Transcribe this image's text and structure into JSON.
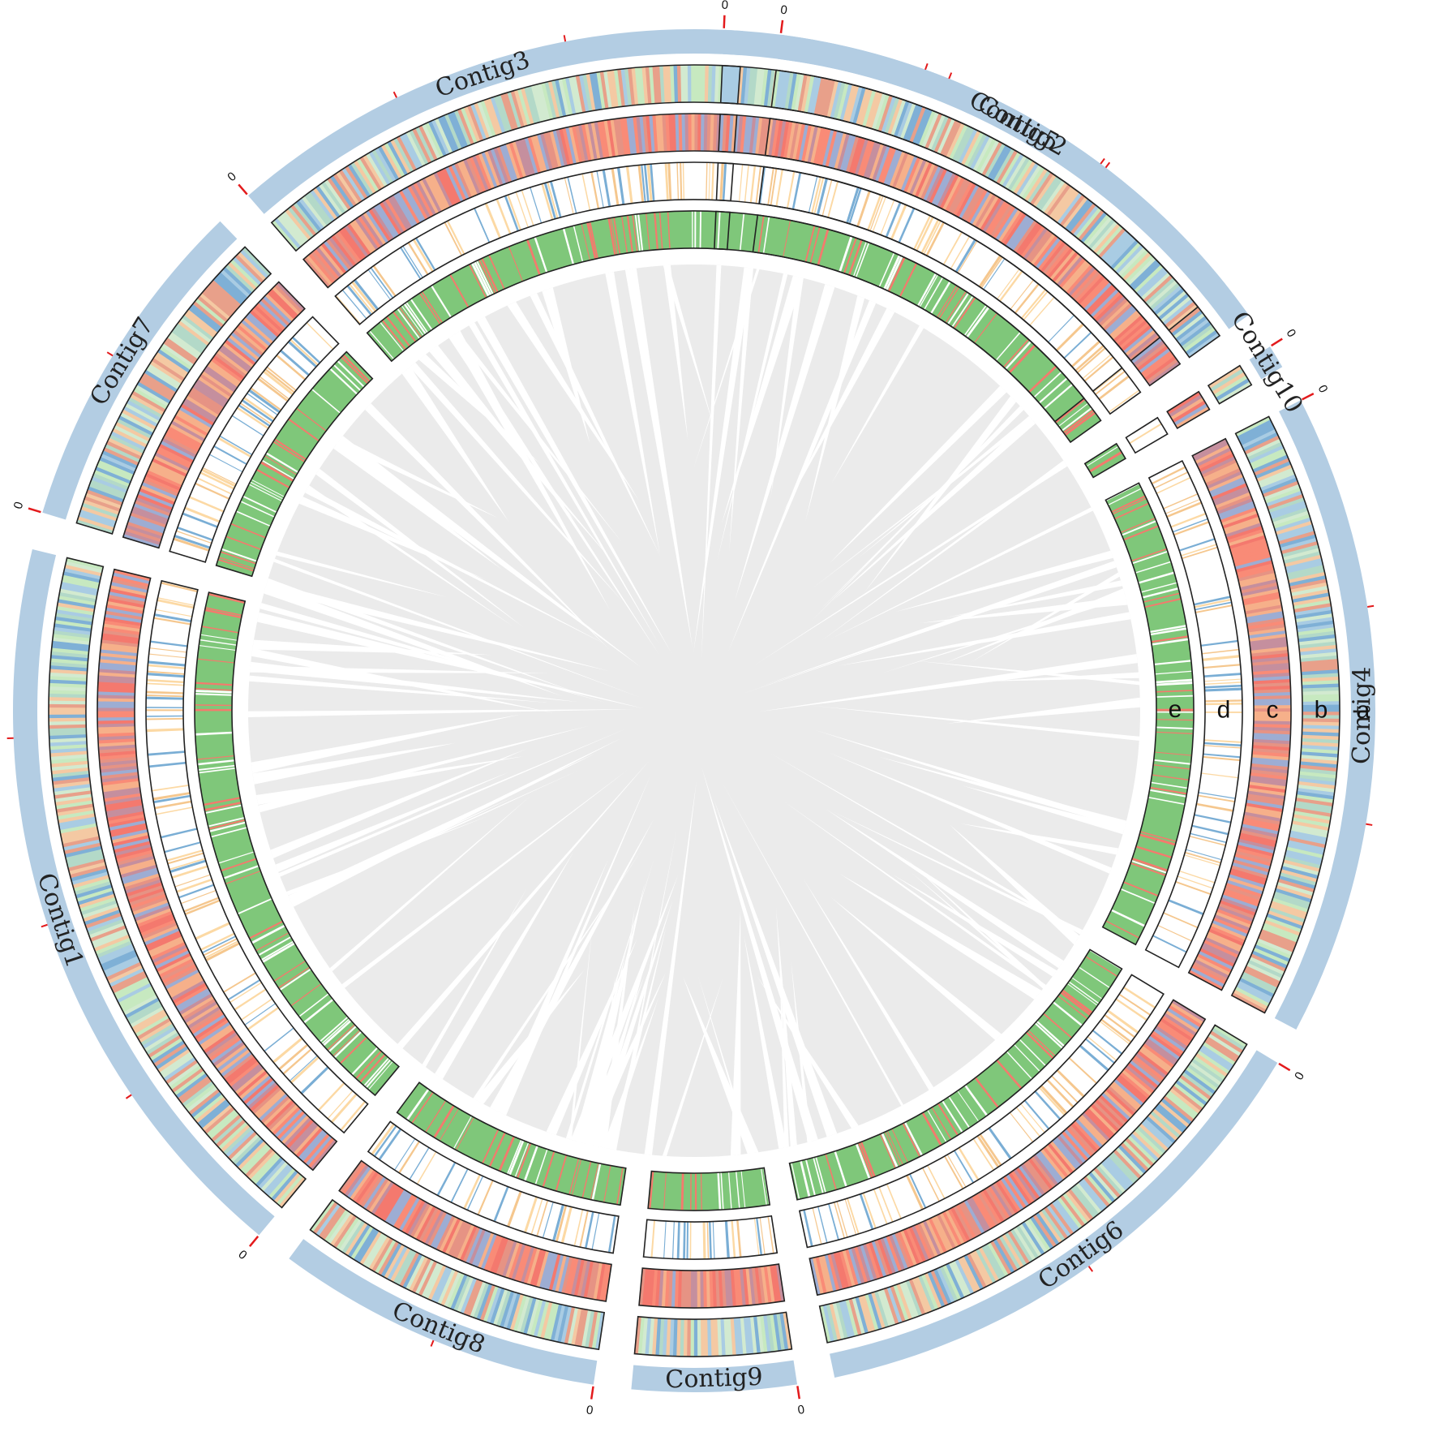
{
  "figure": {
    "contig_block_color": "#b3cde3",
    "tick_color": "#e31a1c",
    "link_color": "#ebebeb",
    "frame_color": "#222222",
    "contig_order": [
      "Contig5",
      "Contig10",
      "Contig4",
      "Contig6",
      "Contig9",
      "Contig8",
      "Contig1",
      "Contig7",
      "Contig3",
      "Contig2"
    ],
    "contigs": [
      {
        "name": "Contig5",
        "zero_label": "0",
        "span_deg": 52,
        "ticks": 2
      },
      {
        "name": "Contig10",
        "zero_label": "0",
        "span_deg": 2,
        "ticks": 0
      },
      {
        "name": "Contig4",
        "zero_label": "0",
        "span_deg": 55,
        "ticks": 2
      },
      {
        "name": "Contig6",
        "zero_label": "0",
        "span_deg": 47,
        "ticks": 1
      },
      {
        "name": "Contig9",
        "zero_label": "0",
        "span_deg": 14,
        "ticks": 0
      },
      {
        "name": "Contig8",
        "zero_label": "0",
        "span_deg": 28,
        "ticks": 1
      },
      {
        "name": "Contig1",
        "zero_label": "0",
        "span_deg": 64,
        "ticks": 3
      },
      {
        "name": "Contig7",
        "zero_label": "0",
        "span_deg": 29,
        "ticks": 1
      },
      {
        "name": "Contig3",
        "zero_label": "0",
        "span_deg": 45,
        "ticks": 2
      },
      {
        "name": "Contig2",
        "zero_label": "0",
        "span_deg": 44,
        "ticks": 2
      }
    ],
    "tracks": [
      {
        "id": "a",
        "label": "a",
        "kind": "contig blocks"
      },
      {
        "id": "b",
        "label": "b",
        "kind": "heatmap",
        "palette": [
          "#c7e9c0",
          "#b3d9c8",
          "#a9cce3",
          "#7fb0d6",
          "#f4c9a3",
          "#e8a08a",
          "#d2ead0"
        ]
      },
      {
        "id": "c",
        "label": "c",
        "kind": "heatmap",
        "palette": [
          "#f4796e",
          "#f98b77",
          "#e69384",
          "#c58f9e",
          "#9dadd3",
          "#f6b08a"
        ]
      },
      {
        "id": "d",
        "label": "d",
        "kind": "stripes",
        "palette": [
          "#fcd9a4",
          "#7aaed5",
          "#f5c78e"
        ]
      },
      {
        "id": "e",
        "label": "e",
        "kind": "stripes",
        "base": "#7fc77a",
        "palette": [
          "#f47a6d",
          "#ffffff"
        ]
      }
    ]
  }
}
